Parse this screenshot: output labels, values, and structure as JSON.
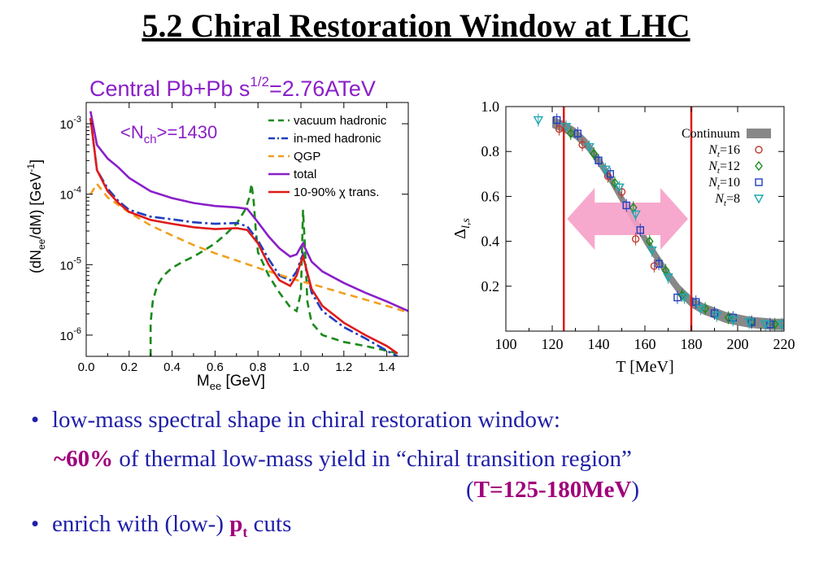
{
  "slide": {
    "title": "5.2 Chiral Restoration Window at LHC"
  },
  "bullets": {
    "b1": "low-mass spectral shape in chiral restoration window:",
    "b2_highlight": "~60%",
    "b2_rest": " of thermal low-mass yield in “chiral transition region”",
    "b3_open": "(",
    "b3_highlight": "T=125-180MeV",
    "b3_close": ")",
    "b4_pre": "enrich with (low-) ",
    "b4_p": "p",
    "b4_sub": "t",
    "b4_post": " cuts",
    "bullet_glyph": "•"
  },
  "chart_data": [
    {
      "type": "line",
      "title_main": "Central Pb+Pb s",
      "title_sup": "1/2",
      "title_rest": "=2.76ATeV",
      "annotation_main": "<N",
      "annotation_sub": "ch",
      "annotation_rest": ">=1430",
      "xlabel_main": "M",
      "xlabel_sub": "ee",
      "xlabel_rest": " [GeV]",
      "ylabel_a": "(dN",
      "ylabel_sub": "ee",
      "ylabel_b": "/dM) [GeV",
      "ylabel_sup": "-1",
      "ylabel_c": "]",
      "xlim": [
        0.0,
        1.5
      ],
      "ylim": [
        5e-07,
        0.002
      ],
      "yscale": "log",
      "xticks": [
        0.0,
        0.2,
        0.4,
        0.6,
        0.8,
        1.0,
        1.2,
        1.4
      ],
      "xtick_labels": [
        "0.0",
        "0.2",
        "0.4",
        "0.6",
        "0.8",
        "1.0",
        "1.2",
        "1.4"
      ],
      "yticks": [
        {
          "value": 0.001,
          "base": "10",
          "exp": "-3"
        },
        {
          "value": 0.0001,
          "base": "10",
          "exp": "-4"
        },
        {
          "value": 1e-05,
          "base": "10",
          "exp": "-5"
        },
        {
          "value": 1e-06,
          "base": "10",
          "exp": "-6"
        }
      ],
      "legend_position": "top-right",
      "series": [
        {
          "name": "vacuum hadronic",
          "color": "#1a8a1a",
          "dash": "9,6",
          "x": [
            0.3,
            0.3,
            0.31,
            0.33,
            0.36,
            0.4,
            0.45,
            0.5,
            0.55,
            0.6,
            0.65,
            0.7,
            0.74,
            0.76,
            0.77,
            0.78,
            0.79,
            0.8,
            0.85,
            0.9,
            0.95,
            0.98,
            1.0,
            1.01,
            1.02,
            1.03,
            1.05,
            1.1,
            1.2,
            1.3,
            1.4,
            1.45
          ],
          "y": [
            5e-07,
            1.5e-06,
            3e-06,
            5e-06,
            7e-06,
            9e-06,
            1.1e-05,
            1.3e-05,
            1.6e-05,
            2e-05,
            2.7e-05,
            3.8e-05,
            6e-05,
            9e-05,
            0.00014,
            8e-05,
            3e-05,
            1.5e-05,
            7e-06,
            4e-06,
            2.5e-06,
            2.2e-06,
            4e-06,
            6e-05,
            1.5e-05,
            3e-06,
            1.5e-06,
            1e-06,
            8e-07,
            7e-07,
            6e-07,
            5.5e-07
          ]
        },
        {
          "name": "in-med hadronic",
          "color": "#1f3fbf",
          "dash": "12,4,3,4",
          "x": [
            0.02,
            0.05,
            0.1,
            0.15,
            0.2,
            0.3,
            0.4,
            0.5,
            0.6,
            0.7,
            0.75,
            0.8,
            0.85,
            0.9,
            0.95,
            0.98,
            1.0,
            1.01,
            1.02,
            1.05,
            1.1,
            1.2,
            1.3,
            1.4,
            1.45
          ],
          "y": [
            0.0012,
            0.00022,
            0.00012,
            8e-05,
            6e-05,
            4.8e-05,
            4.4e-05,
            4e-05,
            3.8e-05,
            3.9e-05,
            3.5e-05,
            2.2e-05,
            1.2e-05,
            7e-06,
            6e-06,
            8e-06,
            1.2e-05,
            1.4e-05,
            1e-05,
            4e-06,
            2.2e-06,
            1.3e-06,
            9e-07,
            6e-07,
            5e-07
          ]
        },
        {
          "name": "QGP",
          "color": "#f0a020",
          "dash": "9,6",
          "x": [
            0.02,
            0.05,
            0.1,
            0.2,
            0.3,
            0.4,
            0.5,
            0.6,
            0.7,
            0.8,
            0.9,
            1.0,
            1.1,
            1.2,
            1.3,
            1.4,
            1.5
          ],
          "y": [
            0.0001,
            0.00014,
            9e-05,
            5.5e-05,
            3.6e-05,
            2.6e-05,
            1.9e-05,
            1.45e-05,
            1.15e-05,
            9e-06,
            7.2e-06,
            5.8e-06,
            4.8e-06,
            3.9e-06,
            3.2e-06,
            2.6e-06,
            2.1e-06
          ]
        },
        {
          "name": "total",
          "color": "#8a1fc8",
          "dash": "",
          "x": [
            0.02,
            0.05,
            0.1,
            0.15,
            0.2,
            0.3,
            0.4,
            0.5,
            0.6,
            0.7,
            0.75,
            0.8,
            0.85,
            0.9,
            0.95,
            0.98,
            1.0,
            1.01,
            1.02,
            1.05,
            1.1,
            1.2,
            1.3,
            1.4,
            1.5
          ],
          "y": [
            0.0015,
            0.0005,
            0.00032,
            0.00024,
            0.00017,
            0.00011,
            8.8e-05,
            7.5e-05,
            6.8e-05,
            6.5e-05,
            6.2e-05,
            4e-05,
            2.5e-05,
            1.7e-05,
            1.3e-05,
            1.4e-05,
            1.8e-05,
            2e-05,
            1.7e-05,
            1.1e-05,
            8e-06,
            5.5e-06,
            4e-06,
            3e-06,
            2.2e-06
          ]
        },
        {
          "name": "10-90% χ trans.",
          "color": "#e01a1a",
          "dash": "",
          "x": [
            0.02,
            0.05,
            0.1,
            0.15,
            0.2,
            0.3,
            0.4,
            0.5,
            0.6,
            0.7,
            0.75,
            0.8,
            0.85,
            0.9,
            0.95,
            0.98,
            1.0,
            1.01,
            1.02,
            1.05,
            1.1,
            1.2,
            1.3,
            1.4,
            1.45
          ],
          "y": [
            0.0012,
            0.00022,
            0.00011,
            7.5e-05,
            5.6e-05,
            4.3e-05,
            3.8e-05,
            3.4e-05,
            3.2e-05,
            3.3e-05,
            3.1e-05,
            2e-05,
            1e-05,
            6e-06,
            5e-06,
            7e-06,
            1.1e-05,
            1.3e-05,
            1e-05,
            4.5e-06,
            2.6e-06,
            1.5e-06,
            1e-06,
            7e-07,
            5.5e-07
          ]
        }
      ]
    },
    {
      "type": "scatter",
      "xlabel": "T [MeV]",
      "ylabel_main": "Δ",
      "ylabel_sub": "l,s",
      "xlim": [
        100,
        220
      ],
      "ylim": [
        0.0,
        1.0
      ],
      "xticks": [
        100,
        120,
        140,
        160,
        180,
        200,
        220
      ],
      "yticks": [
        0.2,
        0.4,
        0.6,
        0.8,
        1.0
      ],
      "ytick_labels": [
        "0.2",
        "0.4",
        "0.6",
        "0.8",
        "1.0"
      ],
      "vertical_lines": [
        125,
        180
      ],
      "vertical_line_color": "#e01a1a",
      "arrow": {
        "from": 125,
        "to": 180,
        "color": "#f6a0c8"
      },
      "legend_position": "top-right",
      "band": {
        "name": "Continuum",
        "color": "#888888",
        "x": [
          120,
          125,
          130,
          135,
          140,
          145,
          150,
          155,
          160,
          165,
          170,
          175,
          180,
          185,
          190,
          195,
          200,
          205,
          210,
          215,
          220
        ],
        "y": [
          0.93,
          0.91,
          0.88,
          0.83,
          0.76,
          0.68,
          0.59,
          0.5,
          0.41,
          0.33,
          0.25,
          0.18,
          0.13,
          0.1,
          0.08,
          0.06,
          0.05,
          0.04,
          0.035,
          0.03,
          0.03
        ],
        "half_width": 0.025
      },
      "series": [
        {
          "name": "N",
          "sub": "t",
          "suffix": "=16",
          "marker": "circle",
          "color": "#c0392b",
          "x": [
            123,
            133,
            144,
            150,
            156,
            164
          ],
          "y": [
            0.9,
            0.83,
            0.69,
            0.62,
            0.41,
            0.29
          ]
        },
        {
          "name": "N",
          "sub": "t",
          "suffix": "=12",
          "marker": "diamond",
          "color": "#1a8a1a",
          "x": [
            128,
            138,
            147,
            155,
            162,
            169,
            176,
            186,
            196,
            206,
            216
          ],
          "y": [
            0.88,
            0.79,
            0.66,
            0.55,
            0.4,
            0.27,
            0.16,
            0.1,
            0.06,
            0.04,
            0.03
          ]
        },
        {
          "name": "N",
          "sub": "t",
          "suffix": "=10",
          "marker": "square",
          "color": "#1f3fbf",
          "x": [
            122,
            131,
            140,
            145,
            152,
            158,
            166,
            174,
            182,
            190,
            198,
            206,
            214
          ],
          "y": [
            0.94,
            0.88,
            0.76,
            0.7,
            0.56,
            0.45,
            0.3,
            0.15,
            0.13,
            0.08,
            0.06,
            0.04,
            0.03
          ]
        },
        {
          "name": "N",
          "sub": "t",
          "suffix": "=8",
          "marker": "triangle",
          "color": "#1ea8b0",
          "x": [
            114,
            126,
            136,
            143,
            149,
            156,
            163,
            170,
            177,
            184,
            191,
            198,
            205,
            212,
            219
          ],
          "y": [
            0.94,
            0.91,
            0.82,
            0.72,
            0.64,
            0.52,
            0.36,
            0.24,
            0.15,
            0.1,
            0.07,
            0.05,
            0.04,
            0.03,
            0.03
          ]
        }
      ]
    }
  ]
}
